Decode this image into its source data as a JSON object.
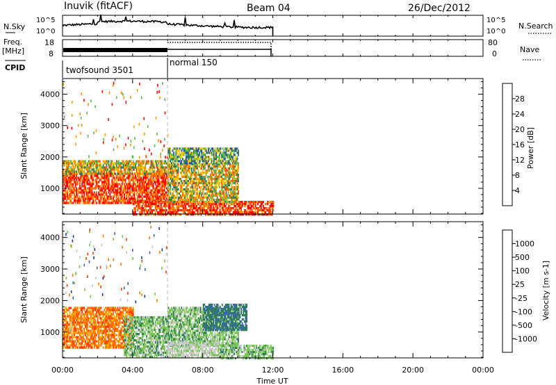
{
  "header": {
    "station": "Inuvik (fitACF)",
    "beam": "Beam 04",
    "date": "26/Dec/2012"
  },
  "noise_panel": {
    "left_label": "N.Sky",
    "right_label": "N.Search",
    "left_ticks": [
      "10^5",
      "10^0"
    ],
    "right_ticks": [
      "10^5",
      "10^0"
    ]
  },
  "freq_panel": {
    "left_label_1": "Freq.",
    "left_label_2": "[MHz]",
    "right_label": "Nave",
    "left_ticks": [
      "18",
      "8"
    ],
    "right_ticks": [
      "80",
      "0"
    ]
  },
  "cpid_panel": {
    "label": "CPID",
    "modes": [
      {
        "name": "twofsound 3501",
        "start_hour": 0,
        "end_hour": 6
      },
      {
        "name": "normal 150",
        "start_hour": 6,
        "end_hour": 12
      }
    ]
  },
  "power_colorbar": {
    "label": "Power [dB]",
    "ticks": [
      "28",
      "24",
      "20",
      "16",
      "12",
      "8",
      "4"
    ],
    "colors": [
      "#ff0000",
      "#ff5a00",
      "#ff9a00",
      "#f5c800",
      "#60b850",
      "#2e7d5a",
      "#2850a8",
      "#0000ff"
    ]
  },
  "velocity_colorbar": {
    "label": "Velocity [m s-1]",
    "ticks": [
      "1000",
      "500",
      "100",
      "25",
      "-25",
      "-100",
      "-500",
      "-1000"
    ],
    "colors": [
      "#1438a8",
      "#3c64b8",
      "#2e7d5a",
      "#78c850",
      "#c8c8c8",
      "#f5b400",
      "#ff7800",
      "#ff3c00",
      "#ff0000"
    ]
  },
  "chart_data": {
    "type": "heatmap",
    "x_ticks": [
      "00:00",
      "04:00",
      "08:00",
      "12:00",
      "16:00",
      "20:00",
      "00:00"
    ],
    "xlabel": "Time UT",
    "xlim_hours": [
      0,
      24
    ],
    "ylabel": "Slant Range [km]",
    "y_ticks": [
      "4000",
      "3000",
      "2000",
      "1000"
    ],
    "ylim_km": [
      180,
      4500
    ],
    "data_end_hour": 12,
    "mode_change_hour": 6,
    "power_regions": [
      {
        "t0": 0.0,
        "t1": 6.0,
        "r0": 550,
        "r1": 1500,
        "level": "strong"
      },
      {
        "t0": 0.0,
        "t1": 6.0,
        "r0": 1500,
        "r1": 1900,
        "level": "medium"
      },
      {
        "t0": 4.0,
        "t1": 12.0,
        "r0": 200,
        "r1": 600,
        "level": "strong"
      },
      {
        "t0": 6.0,
        "t1": 10.0,
        "r0": 600,
        "r1": 1800,
        "level": "medium"
      },
      {
        "t0": 6.0,
        "t1": 10.0,
        "r0": 1800,
        "r1": 2300,
        "level": "weak"
      }
    ],
    "velocity_regions": [
      {
        "t0": 0.0,
        "t1": 4.0,
        "r0": 500,
        "r1": 1800,
        "class": "-100"
      },
      {
        "t0": 3.5,
        "t1": 6.0,
        "r0": 200,
        "r1": 1500,
        "class": "100"
      },
      {
        "t0": 6.0,
        "t1": 10.0,
        "r0": 600,
        "r1": 1800,
        "class": "100"
      },
      {
        "t0": 6.0,
        "t1": 9.0,
        "r0": 200,
        "r1": 700,
        "class": "25"
      },
      {
        "t0": 8.0,
        "t1": 10.5,
        "r0": 1100,
        "r1": 1900,
        "class": "500"
      },
      {
        "t0": 9.0,
        "t1": 12.0,
        "r0": 200,
        "r1": 600,
        "class": "100"
      }
    ]
  }
}
